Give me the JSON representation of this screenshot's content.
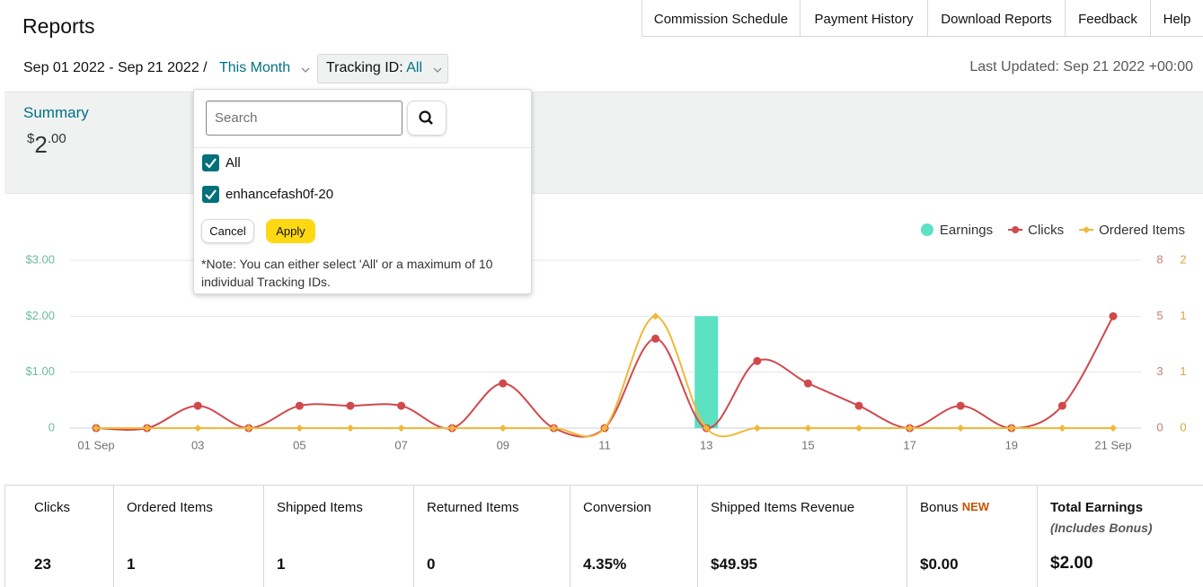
{
  "header": {
    "title": "Reports",
    "tabs": [
      "Commission Schedule",
      "Payment History",
      "Download Reports",
      "Feedback",
      "Help"
    ]
  },
  "filters": {
    "date_range": "Sep 01 2022 - Sep 21 2022 /",
    "period": "This Month",
    "tracking_label": "Tracking ID:",
    "tracking_value": "All",
    "last_updated": "Last Updated: Sep 21 2022 +00:00"
  },
  "summary": {
    "title": "Summary",
    "currency": "$",
    "whole": "2",
    "fraction": ".00"
  },
  "dropdown": {
    "search_placeholder": "Search",
    "options": [
      "All",
      "enhancefash0f-20"
    ],
    "cancel": "Cancel",
    "apply": "Apply",
    "note": "*Note: You can either select 'All' or a maximum of 10 individual Tracking IDs."
  },
  "chart_data": {
    "type": "combo",
    "categories": [
      "01 Sep",
      null,
      "03",
      null,
      "05",
      null,
      "07",
      null,
      "09",
      null,
      "11",
      null,
      "13",
      null,
      "15",
      null,
      "17",
      null,
      "19",
      null,
      "21 Sep"
    ],
    "series": [
      {
        "name": "Earnings",
        "type": "bar",
        "color": "#5ce1c3",
        "axis": "y",
        "values": [
          0,
          0,
          0,
          0,
          0,
          0,
          0,
          0,
          0,
          0,
          0,
          0,
          2,
          0,
          0,
          0,
          0,
          0,
          0,
          0,
          0
        ]
      },
      {
        "name": "Clicks",
        "type": "line",
        "color": "#d0494c",
        "axis": "y2",
        "values": [
          0,
          0,
          1,
          0,
          1,
          1,
          1,
          0,
          2,
          0,
          0,
          4,
          0,
          3,
          2,
          1,
          0,
          1,
          0,
          1,
          5
        ]
      },
      {
        "name": "Ordered Items",
        "type": "line",
        "color": "#f0b83a",
        "axis": "y3",
        "values": [
          0,
          0,
          0,
          0,
          0,
          0,
          0,
          0,
          0,
          0,
          0,
          1,
          0,
          0,
          0,
          0,
          0,
          0,
          0,
          0,
          0
        ]
      }
    ],
    "ylim": [
      0,
      3
    ],
    "yticks": [
      0,
      {
        "value": 1,
        "label": "$1.00"
      },
      {
        "value": 2,
        "label": "$2.00"
      },
      {
        "value": 3,
        "label": "$3.00"
      }
    ],
    "y2lim": [
      0,
      7.5
    ],
    "y2ticks": [
      0,
      {
        "value": 2.5,
        "label": "3"
      },
      5,
      {
        "value": 7.5,
        "label": "8"
      }
    ],
    "y3lim": [
      0,
      1.5
    ],
    "y3ticks": [
      0,
      {
        "value": 0.5,
        "label": "1"
      },
      1,
      {
        "value": 1.5,
        "label": "2"
      }
    ],
    "grid": true,
    "legend": "top-right"
  },
  "metrics": [
    {
      "label": "Clicks",
      "value": "23"
    },
    {
      "label": "Ordered Items",
      "value": "1"
    },
    {
      "label": "Shipped Items",
      "value": "1"
    },
    {
      "label": "Returned Items",
      "value": "0"
    },
    {
      "label": "Conversion",
      "value": "4.35%"
    },
    {
      "label": "Shipped Items Revenue",
      "value": "$49.95"
    },
    {
      "label": "Bonus",
      "badge": "NEW",
      "value": "$0.00"
    },
    {
      "label": "Total Earnings",
      "sublabel": "(Includes Bonus)",
      "value": "$2.00"
    }
  ]
}
